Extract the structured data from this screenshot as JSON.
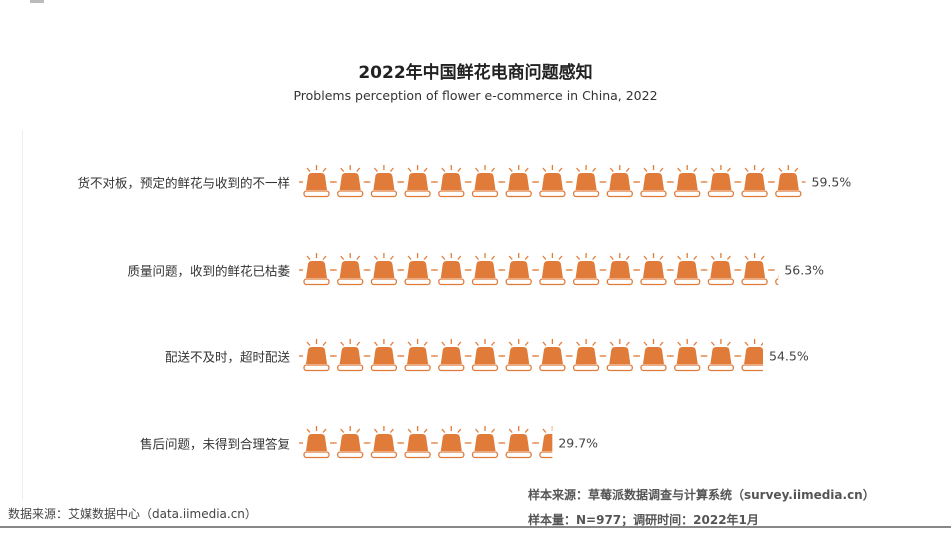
{
  "chart_data": {
    "type": "bar",
    "style": "pictogram",
    "icon": "siren-alarm-light-icon",
    "title": "2022年中国鲜花电商问题感知",
    "subtitle": "Problems perception of flower e-commerce in China, 2022",
    "categories": [
      "货不对板，预定的鲜花与收到的不一样",
      "质量问题，收到的鲜花已枯萎",
      "配送不及时，超时配送",
      "售后问题，未得到合理答复"
    ],
    "values": [
      59.5,
      56.3,
      54.5,
      29.7
    ],
    "value_labels": [
      "59.5%",
      "56.3%",
      "54.5%",
      "29.7%"
    ],
    "unit": "%",
    "color": "#e07b39"
  },
  "footer": {
    "data_source": "数据来源：艾媒数据中心（data.iimedia.cn）",
    "sample_source": "样本来源：草莓派数据调查与计算系统（survey.iimedia.cn）",
    "sample_info": "样本量：N=977；调研时间：2022年1月"
  }
}
